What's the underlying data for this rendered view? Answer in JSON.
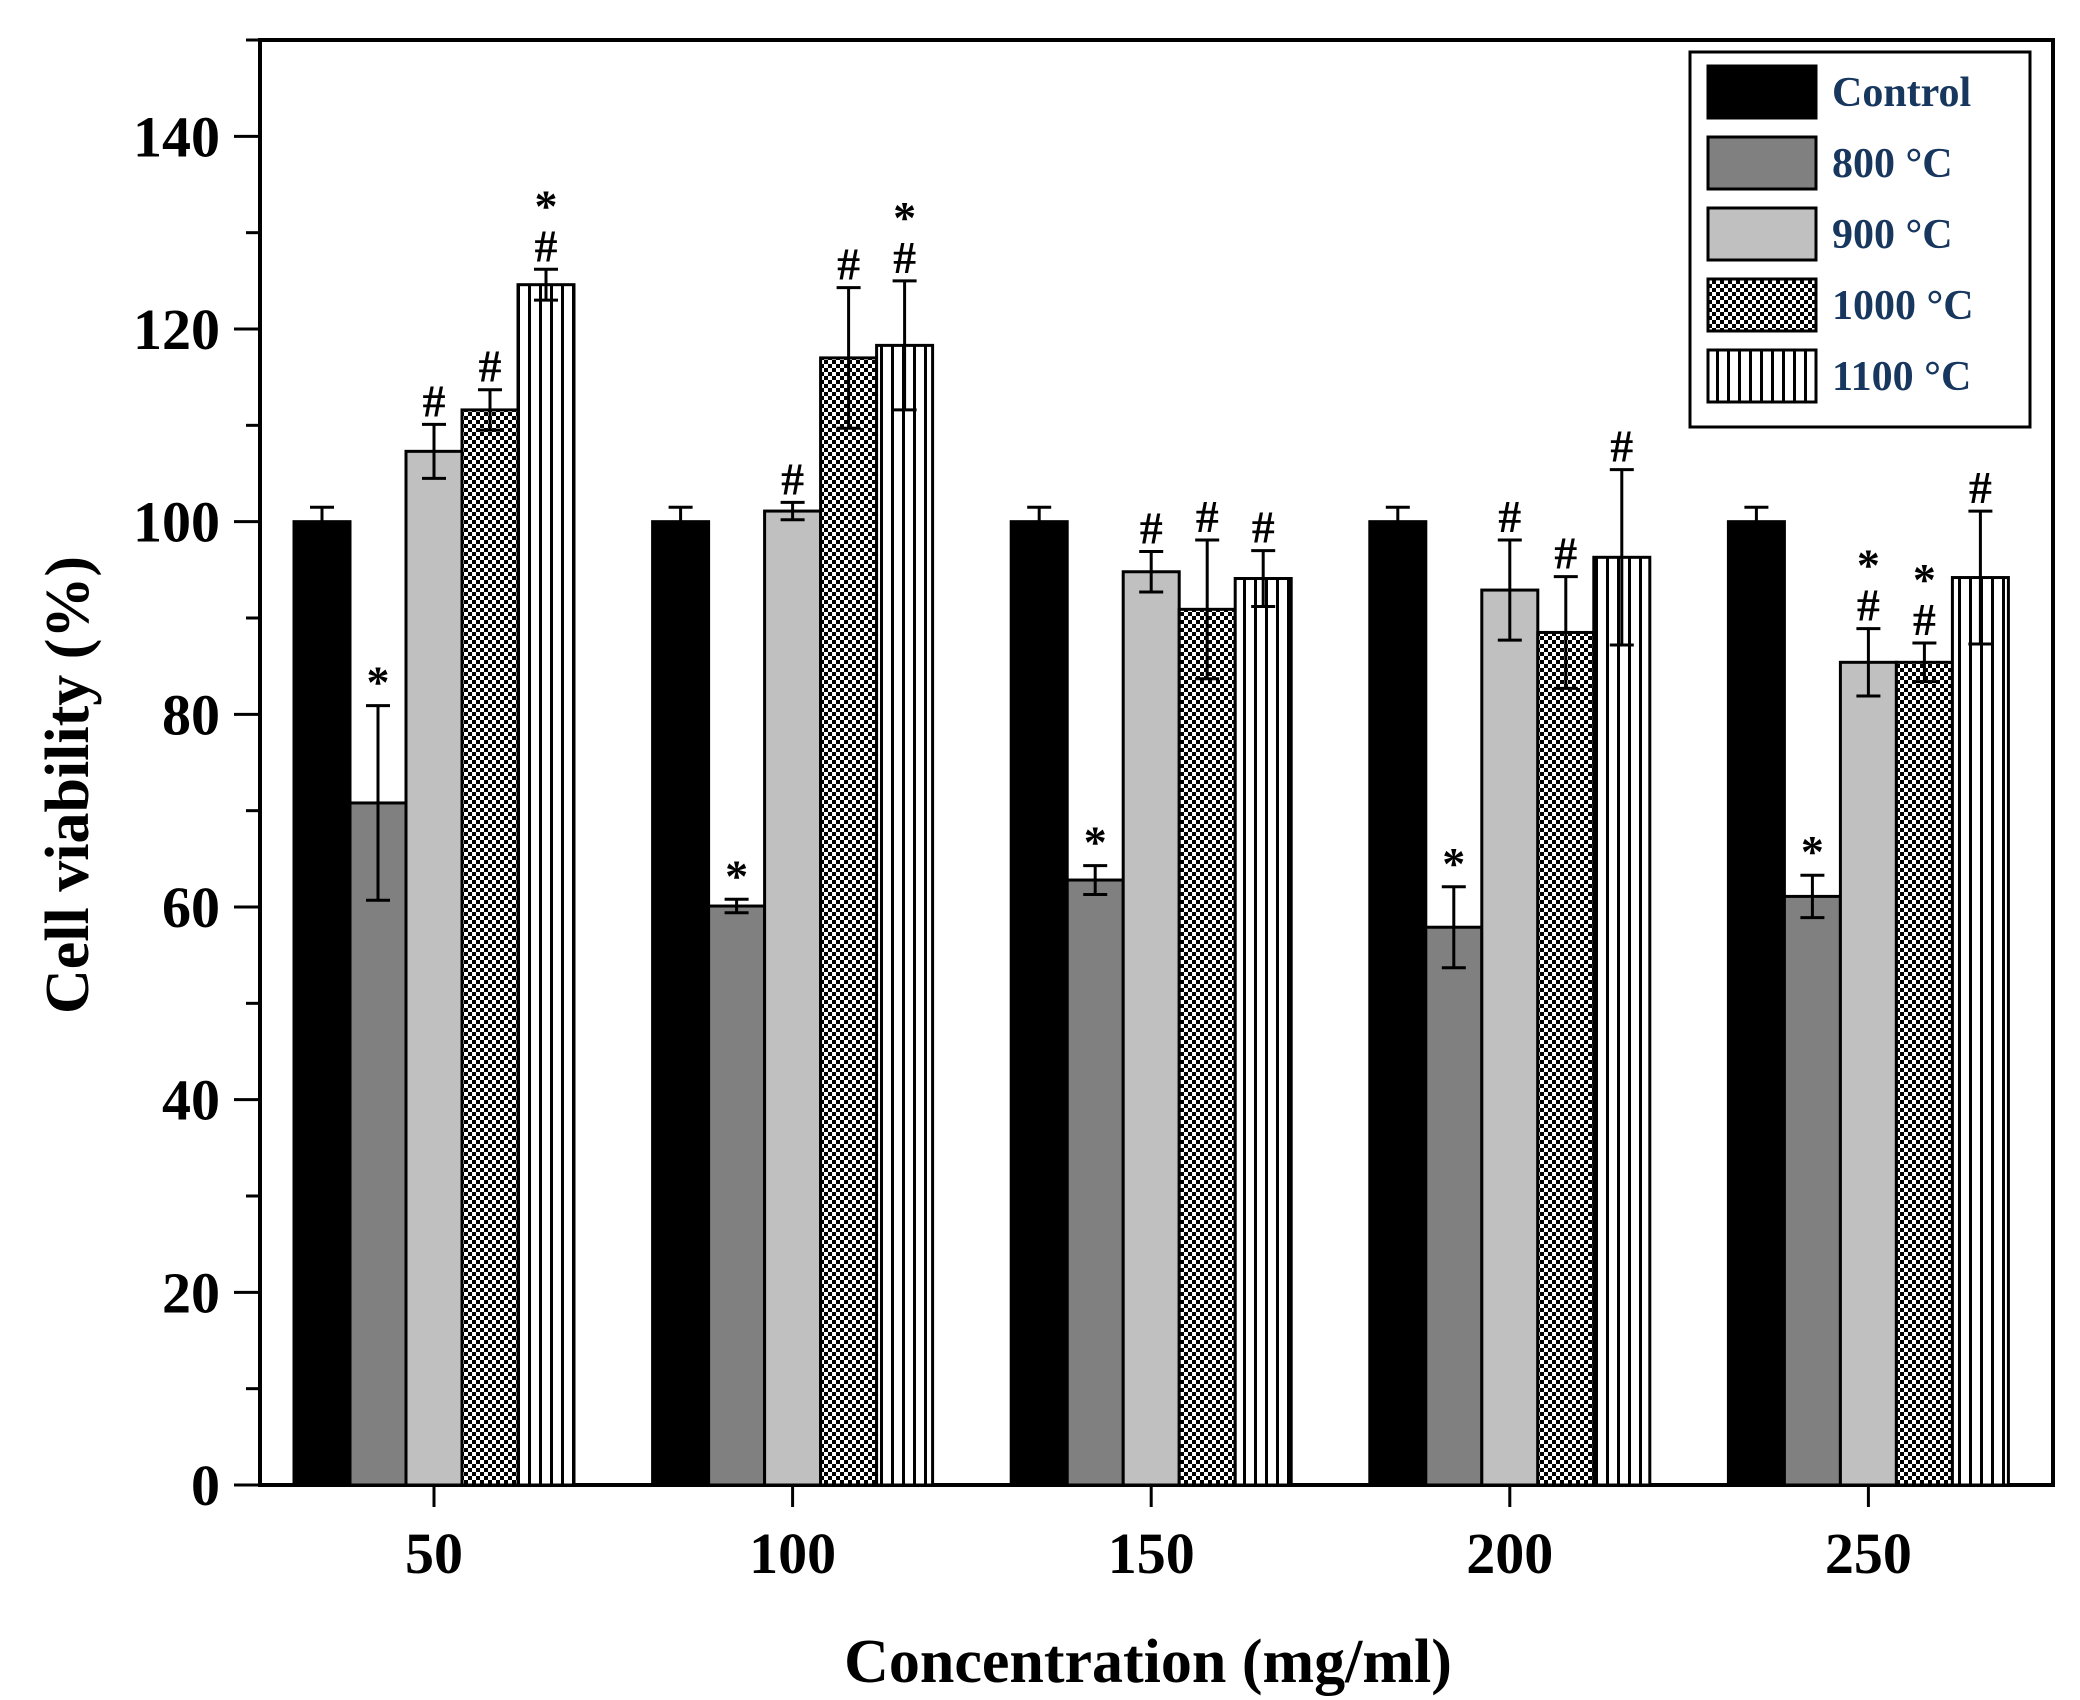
{
  "chart_data": {
    "type": "bar",
    "title": "",
    "xlabel": "Concentration (mg/ml)",
    "ylabel": "Cell viability (%)",
    "ylim": [
      0,
      150
    ],
    "yticks": [
      "0",
      "20",
      "40",
      "60",
      "80",
      "100",
      "120",
      "140"
    ],
    "categories": [
      "50",
      "100",
      "150",
      "200",
      "250"
    ],
    "legend_position": "top-right",
    "series": [
      {
        "name": "Control",
        "fill": "solid",
        "color": "#000000",
        "values": [
          100,
          100,
          100,
          100,
          100
        ],
        "errors": [
          1.5,
          1.5,
          1.5,
          1.5,
          1.5
        ],
        "annotations": [
          "",
          "",
          "",
          "",
          ""
        ]
      },
      {
        "name": "800 °C",
        "fill": "solid",
        "color": "#808080",
        "values": [
          70.8,
          60.1,
          62.8,
          57.9,
          61.1
        ],
        "errors": [
          10.1,
          0.7,
          1.5,
          4.2,
          2.2
        ],
        "annotations": [
          "*",
          "*",
          "*",
          "*",
          "*"
        ]
      },
      {
        "name": "900 °C",
        "fill": "solid",
        "color": "#c0c0c0",
        "values": [
          107.3,
          101.1,
          94.8,
          92.9,
          85.4
        ],
        "errors": [
          2.8,
          0.9,
          2.1,
          5.2,
          3.5
        ],
        "annotations": [
          "#",
          "#",
          "#",
          "#",
          "*#"
        ]
      },
      {
        "name": "1000 °C",
        "fill": "checker",
        "color": "#000000",
        "values": [
          111.6,
          117.0,
          90.9,
          88.5,
          85.4
        ],
        "errors": [
          2.1,
          7.3,
          7.2,
          5.8,
          2.0
        ],
        "annotations": [
          "#",
          "#",
          "#",
          "#",
          "*#"
        ]
      },
      {
        "name": "1100 °C",
        "fill": "vertical-stripes",
        "color": "#000000",
        "values": [
          124.6,
          118.3,
          94.1,
          96.3,
          94.2
        ],
        "errors": [
          1.6,
          6.7,
          2.9,
          9.1,
          6.9
        ],
        "annotations": [
          "*#",
          "*#",
          "#",
          "#",
          "#"
        ]
      }
    ]
  }
}
